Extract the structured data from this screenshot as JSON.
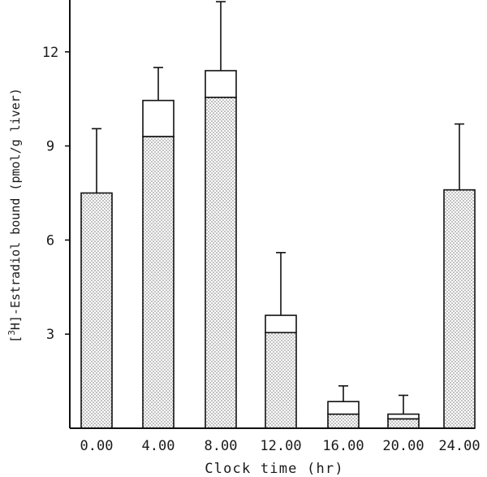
{
  "chart_data": {
    "type": "bar",
    "title": "",
    "xlabel": "Clock time (hr)",
    "ylabel_prefix": "[",
    "ylabel_sup": "3",
    "ylabel_rest": "H]-Estradiol bound (pmol/g liver)",
    "categories": [
      "0.00",
      "4.00",
      "8.00",
      "12.00",
      "16.00",
      "20.00",
      "24.00"
    ],
    "series": [
      {
        "values": [
          7.5,
          9.3,
          10.55,
          3.05,
          0.45,
          0.3,
          7.6
        ]
      },
      {
        "values": [
          0,
          1.15,
          0.85,
          0.55,
          0.4,
          0.15,
          0
        ]
      }
    ],
    "error_bars_upper": [
      9.55,
      11.5,
      13.6,
      5.6,
      1.35,
      1.05,
      9.7
    ],
    "ylim": [
      0,
      14
    ],
    "yticks": [
      "3",
      "6",
      "9",
      "12"
    ],
    "colors": {
      "stipple": "#6e6e6e",
      "axis": "#111111",
      "background": "#ffffff"
    }
  }
}
